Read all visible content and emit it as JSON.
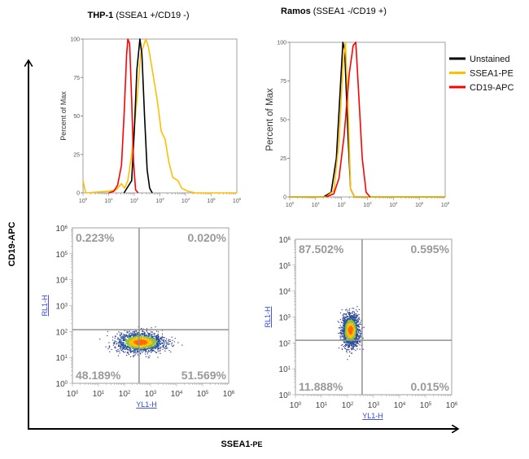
{
  "figure": {
    "y_axis_label": "CD19-APC",
    "x_axis_label_main": "SSEA1",
    "x_axis_label_suffix": "-PE",
    "colors": {
      "unstained": "#000000",
      "ssea1_pe": "#ffbf00",
      "cd19_apc": "#ff0000",
      "frame": "#a0a0a0",
      "gate": "#909090",
      "channel_label": "#3344dd"
    }
  },
  "panels": [
    {
      "title_bold": "THP-1",
      "title_rest": " (SSEA1 +/CD19 -)"
    },
    {
      "title_bold": "Ramos",
      "title_rest": " (SSEA1 -/CD19 +)"
    }
  ],
  "legend": [
    {
      "label": "Unstained",
      "color": "#000000"
    },
    {
      "label": "SSEA1-PE",
      "color": "#ffbf00"
    },
    {
      "label": "CD19-APC",
      "color": "#ff0000"
    }
  ],
  "chart_data": [
    {
      "type": "line",
      "panel": "THP-1",
      "ylabel": "Percent of Max",
      "xscale": "log",
      "xlim": [
        1,
        1000000
      ],
      "ylim": [
        0,
        100
      ],
      "yticks": [
        "0",
        "25",
        "50",
        "75",
        "100"
      ],
      "xticks": [
        {
          "base": "10",
          "exp": "0"
        },
        {
          "base": "10",
          "exp": "1"
        },
        {
          "base": "10",
          "exp": "2"
        },
        {
          "base": "10",
          "exp": "3"
        },
        {
          "base": "10",
          "exp": "4"
        },
        {
          "base": "10",
          "exp": "5"
        },
        {
          "base": "10",
          "exp": "6"
        }
      ],
      "series": [
        {
          "name": "SSEA1-PE",
          "color": "#ffbf00",
          "log10_x": [
            0,
            0.1,
            1.0,
            1.3,
            1.5,
            1.62,
            1.75,
            1.9,
            2.1,
            2.25,
            2.45,
            2.55,
            2.7,
            2.9,
            3.05,
            3.2,
            3.35,
            3.5,
            3.7,
            3.85,
            4.1,
            4.4,
            6
          ],
          "y": [
            8,
            0,
            1,
            2,
            6,
            3,
            8,
            25,
            60,
            90,
            100,
            95,
            80,
            60,
            40,
            35,
            20,
            10,
            8,
            3,
            1,
            0,
            0
          ]
        },
        {
          "name": "Unstained",
          "color": "#000000",
          "log10_x": [
            1.6,
            1.9,
            2.0,
            2.1,
            2.22,
            2.3,
            2.4,
            2.5,
            2.6,
            2.7
          ],
          "y": [
            0,
            8,
            40,
            80,
            100,
            90,
            50,
            15,
            3,
            0
          ]
        },
        {
          "name": "CD19-APC",
          "color": "#ff0000",
          "log10_x": [
            1.0,
            1.2,
            1.35,
            1.5,
            1.6,
            1.7,
            1.75,
            1.82,
            1.9,
            1.97,
            2.05,
            2.15
          ],
          "y": [
            0,
            1,
            5,
            18,
            50,
            90,
            100,
            97,
            60,
            20,
            2,
            0
          ]
        }
      ]
    },
    {
      "type": "line",
      "panel": "Ramos",
      "ylabel": "Percent of Max",
      "xscale": "log",
      "xlim": [
        1,
        1000000
      ],
      "ylim": [
        0,
        100
      ],
      "yticks": [
        "0",
        "25",
        "50",
        "75",
        "100"
      ],
      "xticks": [
        {
          "base": "10",
          "exp": "0"
        },
        {
          "base": "10",
          "exp": "1"
        },
        {
          "base": "10",
          "exp": "2"
        },
        {
          "base": "10",
          "exp": "3"
        },
        {
          "base": "10",
          "exp": "4"
        },
        {
          "base": "10",
          "exp": "5"
        },
        {
          "base": "10",
          "exp": "6"
        }
      ],
      "series": [
        {
          "name": "Unstained",
          "color": "#000000",
          "log10_x": [
            0,
            1.3,
            1.6,
            1.8,
            1.95,
            2.05,
            2.12,
            2.25,
            2.35,
            2.5,
            6
          ],
          "y": [
            0,
            0,
            3,
            25,
            70,
            100,
            95,
            40,
            5,
            0,
            0
          ]
        },
        {
          "name": "SSEA1-PE",
          "color": "#ffbf00",
          "log10_x": [
            0,
            1.4,
            1.7,
            1.9,
            2.05,
            2.15,
            2.25,
            2.35,
            2.5,
            6
          ],
          "y": [
            0,
            0,
            4,
            35,
            85,
            100,
            60,
            5,
            0,
            0
          ]
        },
        {
          "name": "CD19-APC",
          "color": "#ff0000",
          "log10_x": [
            1.4,
            1.7,
            1.9,
            2.1,
            2.3,
            2.45,
            2.55,
            2.65,
            2.8,
            2.95,
            3.1
          ],
          "y": [
            0,
            2,
            12,
            40,
            80,
            98,
            100,
            70,
            25,
            3,
            0
          ]
        }
      ]
    },
    {
      "type": "scatter",
      "panel": "THP-1",
      "xlabel": "YL1-H",
      "ylabel": "RL1-H",
      "xscale": "log",
      "yscale": "log",
      "xlim": [
        1,
        1000000
      ],
      "ylim": [
        1,
        1000000
      ],
      "ticks": [
        {
          "base": "10",
          "exp": "0"
        },
        {
          "base": "10",
          "exp": "1"
        },
        {
          "base": "10",
          "exp": "2"
        },
        {
          "base": "10",
          "exp": "3"
        },
        {
          "base": "10",
          "exp": "4"
        },
        {
          "base": "10",
          "exp": "5"
        },
        {
          "base": "10",
          "exp": "6"
        }
      ],
      "gate_log10": {
        "x": 2.56,
        "y": 2.07
      },
      "population_log10": {
        "x_center": 2.6,
        "y_center": 1.6,
        "x_sd": 0.45,
        "y_sd": 0.18,
        "events": 1800
      },
      "quadrants": {
        "upper_left": "0.223%",
        "upper_right": "0.020%",
        "lower_left": "48.189%",
        "lower_right": "51.569%"
      }
    },
    {
      "type": "scatter",
      "panel": "Ramos",
      "xlabel": "YL1-H",
      "ylabel": "RL1-H",
      "xscale": "log",
      "yscale": "log",
      "xlim": [
        1,
        1000000
      ],
      "ylim": [
        1,
        1000000
      ],
      "ticks": [
        {
          "base": "10",
          "exp": "0"
        },
        {
          "base": "10",
          "exp": "1"
        },
        {
          "base": "10",
          "exp": "2"
        },
        {
          "base": "10",
          "exp": "3"
        },
        {
          "base": "10",
          "exp": "4"
        },
        {
          "base": "10",
          "exp": "5"
        },
        {
          "base": "10",
          "exp": "6"
        }
      ],
      "gate_log10": {
        "x": 2.56,
        "y": 2.1
      },
      "population_log10": {
        "x_center": 2.1,
        "y_center": 2.5,
        "x_sd": 0.16,
        "y_sd": 0.3,
        "events": 1800
      },
      "quadrants": {
        "upper_left": "87.502%",
        "upper_right": "0.595%",
        "lower_left": "11.888%",
        "lower_right": "0.015%"
      }
    }
  ]
}
